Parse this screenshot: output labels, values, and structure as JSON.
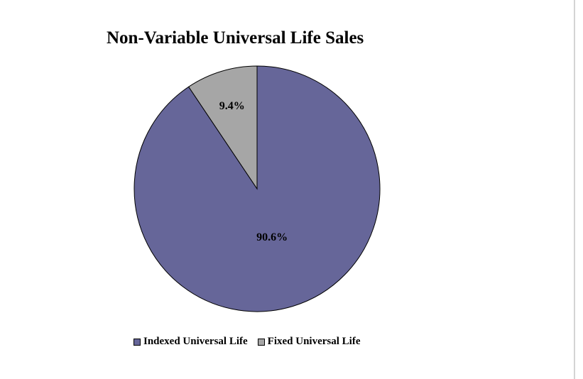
{
  "chart_data": {
    "type": "pie",
    "title": "Non-Variable Universal Life Sales",
    "slices": [
      {
        "label": "Indexed Universal Life",
        "value": 90.6,
        "value_label": "90.6%",
        "color": "#666699"
      },
      {
        "label": "Fixed Universal Life",
        "value": 9.4,
        "value_label": "9.4%",
        "color": "#a6a6a6"
      }
    ],
    "legend_position": "bottom"
  }
}
